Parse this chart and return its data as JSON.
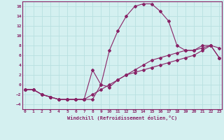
{
  "xlabel": "Windchill (Refroidissement éolien,°C)",
  "background_color": "#d4f0f0",
  "grid_color": "#b8e0e0",
  "line_color": "#882266",
  "x_ticks": [
    0,
    1,
    2,
    3,
    4,
    5,
    6,
    7,
    8,
    9,
    10,
    11,
    12,
    13,
    14,
    15,
    16,
    17,
    18,
    19,
    20,
    21,
    22,
    23
  ],
  "y_ticks": [
    -4,
    -2,
    0,
    2,
    4,
    6,
    8,
    10,
    12,
    14,
    16
  ],
  "ylim": [
    -5,
    17
  ],
  "xlim": [
    -0.3,
    23.3
  ],
  "curve1_x": [
    0,
    1,
    2,
    3,
    4,
    5,
    6,
    7,
    8,
    9,
    10,
    11,
    12,
    13,
    14,
    15,
    16,
    17,
    18,
    19,
    20,
    21,
    22,
    23
  ],
  "curve1_y": [
    -1,
    -1,
    -2,
    -2.5,
    -3,
    -3,
    -3,
    -3,
    -3,
    0,
    7,
    11,
    14,
    16,
    16.5,
    16.5,
    15,
    13,
    8,
    7,
    7,
    8,
    8,
    7.5
  ],
  "curve2_x": [
    0,
    1,
    2,
    3,
    4,
    5,
    6,
    7,
    8,
    9,
    10,
    11,
    12,
    13,
    14,
    15,
    16,
    17,
    18,
    19,
    20,
    21,
    22,
    23
  ],
  "curve2_y": [
    -1,
    -1,
    -2,
    -2.5,
    -3,
    -3,
    -3,
    -3,
    3,
    0,
    -0.5,
    1,
    2,
    3,
    4,
    5,
    5.5,
    6,
    6.5,
    7,
    7,
    7.5,
    8,
    5.5
  ],
  "curve3_x": [
    0,
    1,
    2,
    3,
    4,
    5,
    6,
    7,
    8,
    9,
    10,
    11,
    12,
    13,
    14,
    15,
    16,
    17,
    18,
    19,
    20,
    21,
    22,
    23
  ],
  "curve3_y": [
    -1,
    -1,
    -2,
    -2.5,
    -3,
    -3,
    -3,
    -3,
    -2,
    -1,
    0,
    1,
    2,
    2.5,
    3,
    3.5,
    4,
    4.5,
    5,
    5.5,
    6,
    7,
    8,
    5.5
  ]
}
